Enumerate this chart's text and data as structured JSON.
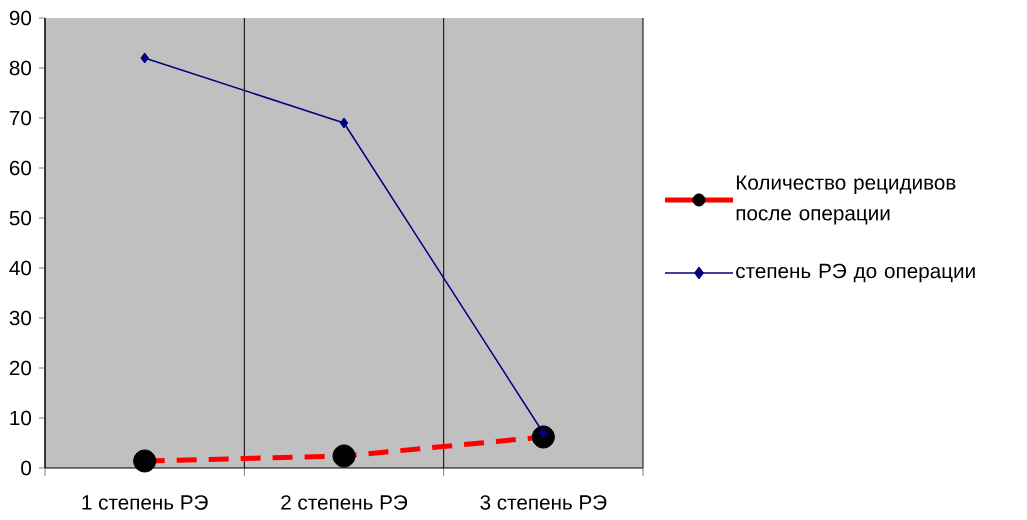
{
  "chart_data": {
    "type": "line",
    "categories": [
      "1 степень РЭ",
      "2 степень РЭ",
      "3 степень РЭ"
    ],
    "ylim": [
      0,
      90
    ],
    "yticks": [
      0,
      10,
      20,
      30,
      40,
      50,
      60,
      70,
      80,
      90
    ],
    "grid": "x",
    "legend": "right",
    "series": [
      {
        "name": "Количество рецидивов после операции",
        "color": "#ff0000",
        "marker": "circle",
        "line_style": "dashed",
        "values": [
          1.4,
          2.4,
          6.2
        ]
      },
      {
        "name": "степень РЭ до операции",
        "color": "#000080",
        "marker": "diamond",
        "line_style": "solid",
        "values": [
          82,
          69,
          7
        ]
      }
    ]
  }
}
